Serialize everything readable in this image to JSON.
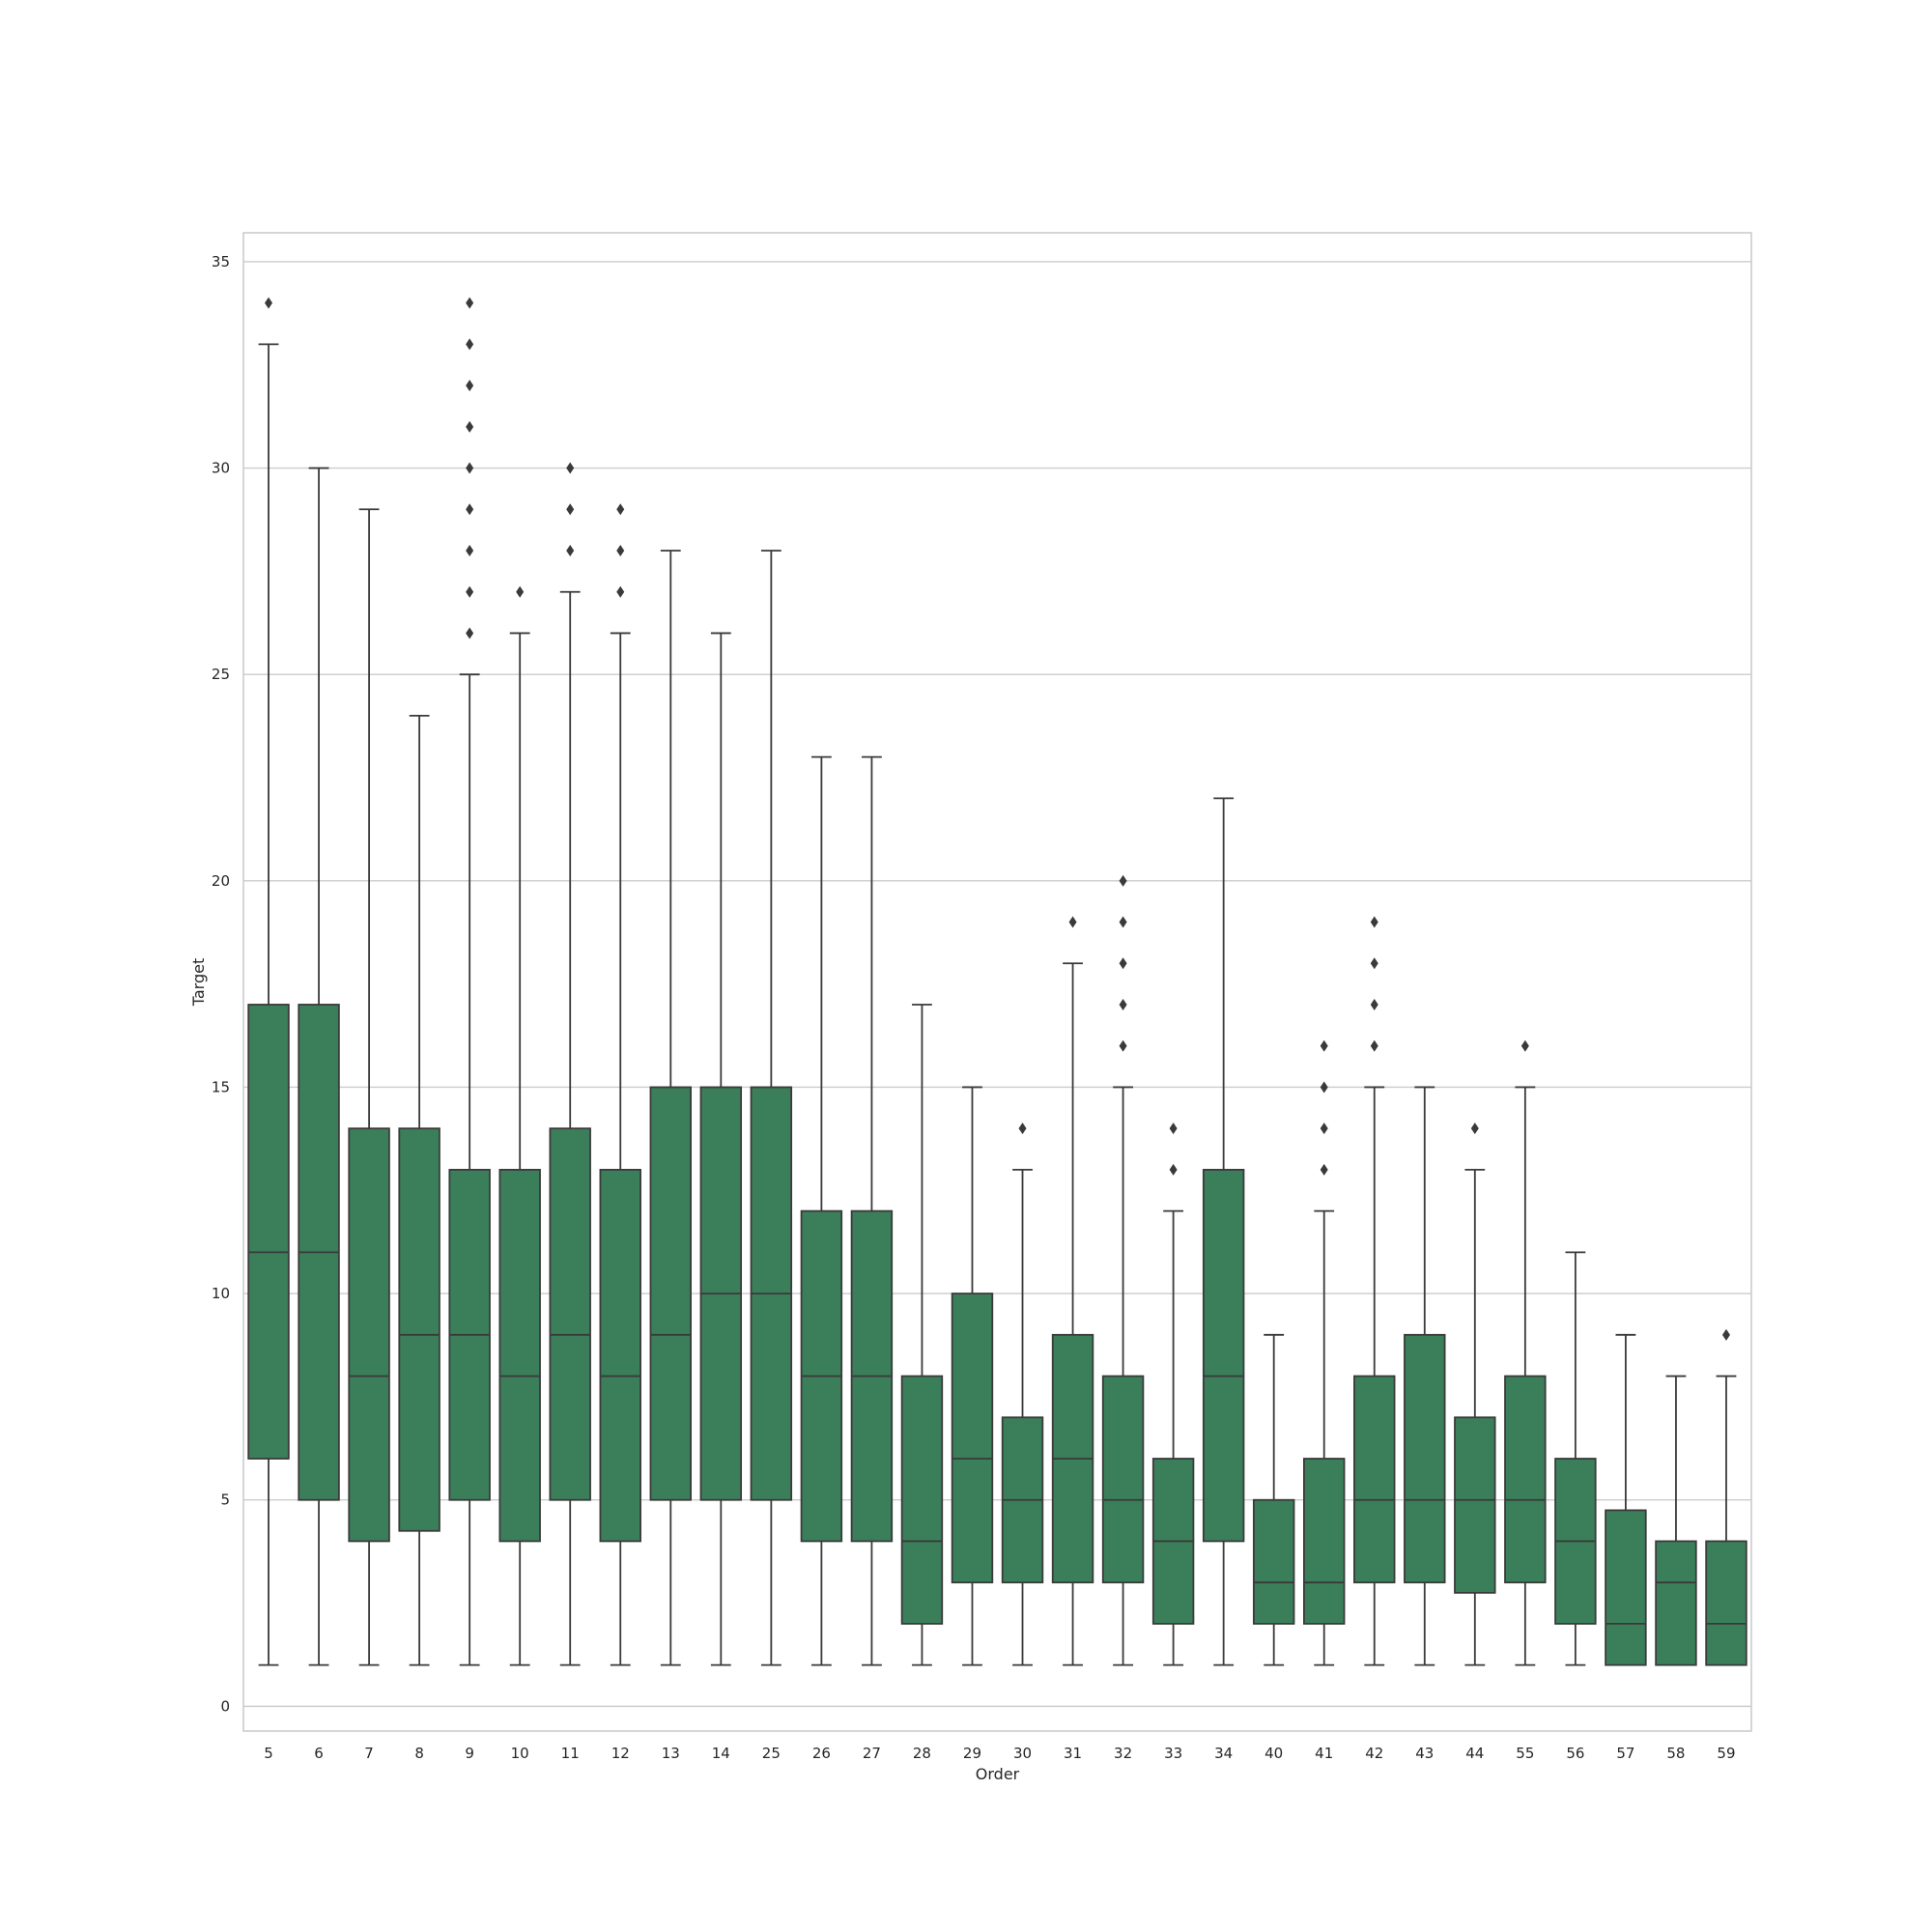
{
  "chart_data": {
    "type": "box",
    "xlabel": "Order",
    "ylabel": "Target",
    "ylim": [
      -0.6,
      35.7
    ],
    "yticks": [
      0,
      5,
      10,
      15,
      20,
      25,
      30,
      35
    ],
    "grid": true,
    "box_color": "#3b7f5a",
    "line_color": "#3a3a3a",
    "categories": [
      "5",
      "6",
      "7",
      "8",
      "9",
      "10",
      "11",
      "12",
      "13",
      "14",
      "25",
      "26",
      "27",
      "28",
      "29",
      "30",
      "31",
      "32",
      "33",
      "34",
      "40",
      "41",
      "42",
      "43",
      "44",
      "55",
      "56",
      "57",
      "58",
      "59"
    ],
    "boxes": [
      {
        "q1": 6,
        "median": 11,
        "q3": 17,
        "whisker_low": 1,
        "whisker_high": 33,
        "outliers": [
          34
        ]
      },
      {
        "q1": 5,
        "median": 11,
        "q3": 17,
        "whisker_low": 1,
        "whisker_high": 30,
        "outliers": []
      },
      {
        "q1": 4,
        "median": 8,
        "q3": 14,
        "whisker_low": 1,
        "whisker_high": 29,
        "outliers": []
      },
      {
        "q1": 4.25,
        "median": 9,
        "q3": 14,
        "whisker_low": 1,
        "whisker_high": 24,
        "outliers": []
      },
      {
        "q1": 5,
        "median": 9,
        "q3": 13,
        "whisker_low": 1,
        "whisker_high": 25,
        "outliers": [
          26,
          27,
          28,
          29,
          30,
          31,
          32,
          33,
          34
        ]
      },
      {
        "q1": 4,
        "median": 8,
        "q3": 13,
        "whisker_low": 1,
        "whisker_high": 26,
        "outliers": [
          27
        ]
      },
      {
        "q1": 5,
        "median": 9,
        "q3": 14,
        "whisker_low": 1,
        "whisker_high": 27,
        "outliers": [
          28,
          29,
          30
        ]
      },
      {
        "q1": 4,
        "median": 8,
        "q3": 13,
        "whisker_low": 1,
        "whisker_high": 26,
        "outliers": [
          27,
          28,
          29
        ]
      },
      {
        "q1": 5,
        "median": 9,
        "q3": 15,
        "whisker_low": 1,
        "whisker_high": 28,
        "outliers": []
      },
      {
        "q1": 5,
        "median": 10,
        "q3": 15,
        "whisker_low": 1,
        "whisker_high": 26,
        "outliers": []
      },
      {
        "q1": 5,
        "median": 10,
        "q3": 15,
        "whisker_low": 1,
        "whisker_high": 28,
        "outliers": []
      },
      {
        "q1": 4,
        "median": 8,
        "q3": 12,
        "whisker_low": 1,
        "whisker_high": 23,
        "outliers": []
      },
      {
        "q1": 4,
        "median": 8,
        "q3": 12,
        "whisker_low": 1,
        "whisker_high": 23,
        "outliers": []
      },
      {
        "q1": 2,
        "median": 4,
        "q3": 8,
        "whisker_low": 1,
        "whisker_high": 17,
        "outliers": []
      },
      {
        "q1": 3,
        "median": 6,
        "q3": 10,
        "whisker_low": 1,
        "whisker_high": 15,
        "outliers": []
      },
      {
        "q1": 3,
        "median": 5,
        "q3": 7,
        "whisker_low": 1,
        "whisker_high": 13,
        "outliers": [
          14
        ]
      },
      {
        "q1": 3,
        "median": 6,
        "q3": 9,
        "whisker_low": 1,
        "whisker_high": 18,
        "outliers": [
          19
        ]
      },
      {
        "q1": 3,
        "median": 5,
        "q3": 8,
        "whisker_low": 1,
        "whisker_high": 15,
        "outliers": [
          16,
          17,
          18,
          19,
          20
        ]
      },
      {
        "q1": 2,
        "median": 4,
        "q3": 6,
        "whisker_low": 1,
        "whisker_high": 12,
        "outliers": [
          13,
          14
        ]
      },
      {
        "q1": 4,
        "median": 8,
        "q3": 13,
        "whisker_low": 1,
        "whisker_high": 22,
        "outliers": []
      },
      {
        "q1": 2,
        "median": 3,
        "q3": 5,
        "whisker_low": 1,
        "whisker_high": 9,
        "outliers": []
      },
      {
        "q1": 2,
        "median": 3,
        "q3": 6,
        "whisker_low": 1,
        "whisker_high": 12,
        "outliers": [
          13,
          14,
          15,
          16
        ]
      },
      {
        "q1": 3,
        "median": 5,
        "q3": 8,
        "whisker_low": 1,
        "whisker_high": 15,
        "outliers": [
          16,
          17,
          18,
          19
        ]
      },
      {
        "q1": 3,
        "median": 5,
        "q3": 9,
        "whisker_low": 1,
        "whisker_high": 15,
        "outliers": []
      },
      {
        "q1": 2.75,
        "median": 5,
        "q3": 7,
        "whisker_low": 1,
        "whisker_high": 13,
        "outliers": [
          14
        ]
      },
      {
        "q1": 3,
        "median": 5,
        "q3": 8,
        "whisker_low": 1,
        "whisker_high": 15,
        "outliers": [
          16
        ]
      },
      {
        "q1": 2,
        "median": 4,
        "q3": 6,
        "whisker_low": 1,
        "whisker_high": 11,
        "outliers": []
      },
      {
        "q1": 1,
        "median": 2,
        "q3": 4.75,
        "whisker_low": 1,
        "whisker_high": 9,
        "outliers": []
      },
      {
        "q1": 1,
        "median": 3,
        "q3": 4,
        "whisker_low": 1,
        "whisker_high": 8,
        "outliers": []
      },
      {
        "q1": 1,
        "median": 2,
        "q3": 4,
        "whisker_low": 1,
        "whisker_high": 8,
        "outliers": [
          9
        ]
      }
    ]
  }
}
